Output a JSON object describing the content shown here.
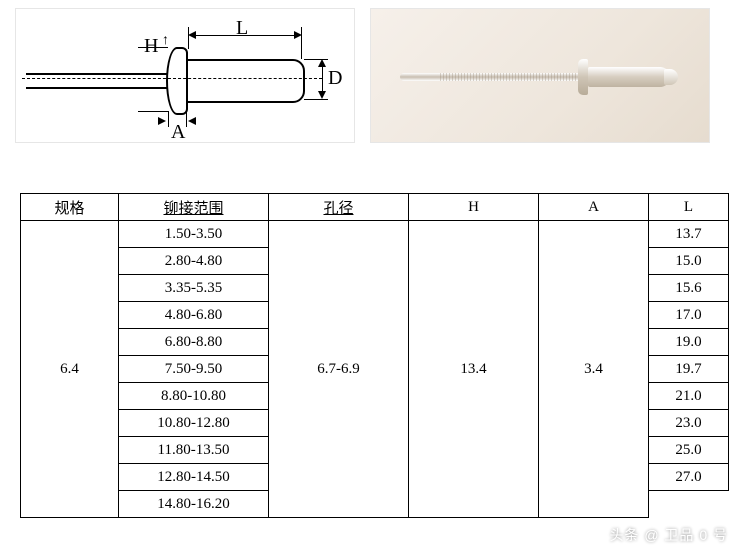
{
  "diagram": {
    "labels": {
      "H": "H",
      "L": "L",
      "D": "D",
      "A": "A"
    },
    "line_color": "#000000",
    "bg": "#ffffff"
  },
  "photo": {
    "bg_gradient_from": "#f6f0ea",
    "bg_gradient_to": "#e6dccf",
    "metal_light": "#ffffff",
    "metal_mid": "#cfc5b6",
    "metal_dark": "#b8ac99"
  },
  "table": {
    "headers": {
      "spec": "规格",
      "range": "铆接范围",
      "hole": "孔径",
      "H": "H",
      "A": "A",
      "L": "L"
    },
    "spec": "6.4",
    "hole": "6.7-6.9",
    "H": "13.4",
    "A": "3.4",
    "rows": [
      {
        "range": "1.50-3.50",
        "L": "13.7"
      },
      {
        "range": "2.80-4.80",
        "L": "15.0"
      },
      {
        "range": "3.35-5.35",
        "L": "15.6"
      },
      {
        "range": "4.80-6.80",
        "L": "17.0"
      },
      {
        "range": "6.80-8.80",
        "L": "19.0"
      },
      {
        "range": "7.50-9.50",
        "L": "19.7"
      },
      {
        "range": "8.80-10.80",
        "L": "21.0"
      },
      {
        "range": "10.80-12.80",
        "L": "23.0"
      },
      {
        "range": "11.80-13.50",
        "L": "25.0"
      },
      {
        "range": "12.80-14.50",
        "L": "27.0"
      },
      {
        "range": "14.80-16.20",
        "L": ""
      }
    ]
  },
  "watermark": "头条 @ 卫品 0 号",
  "style": {
    "border_color": "#000000",
    "panel_border": "#e6e6e6",
    "font_body": "SimSun",
    "font_num": "Times New Roman",
    "fontsize_body": 15,
    "fontsize_dim": 20
  }
}
